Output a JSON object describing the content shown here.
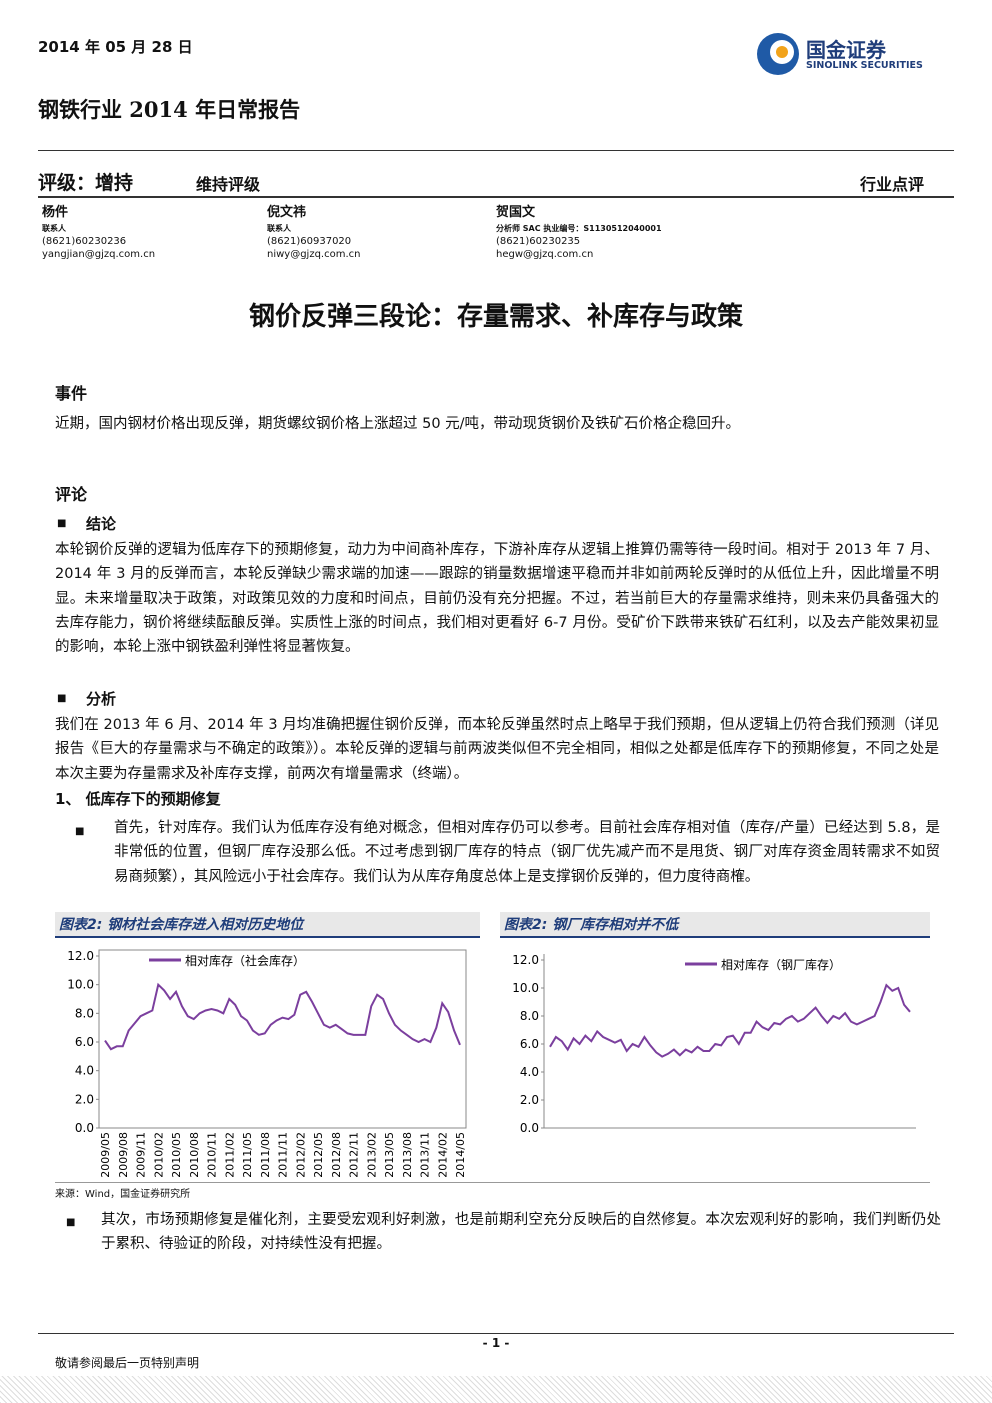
{
  "header": {
    "date": "2014 年 05 月 28 日",
    "logo_cn": "国金证券",
    "logo_en": "SINOLINK SECURITIES",
    "report_title": "钢铁行业 2014 年日常报告"
  },
  "rating": {
    "label": "评级：增持",
    "maintain": "维持评级",
    "category": "行业点评"
  },
  "analysts": [
    {
      "name": "杨件",
      "role": "联系人",
      "phone": "(8621)60230236",
      "email": "yangjian@gjzq.com.cn"
    },
    {
      "name": "倪文祎",
      "role": "联系人",
      "phone": "(8621)60937020",
      "email": "niwy@gjzq.com.cn"
    },
    {
      "name": "贺国文",
      "role": "分析师 SAC 执业编号：S1130512040001",
      "phone": "(8621)60230235",
      "email": "hegw@gjzq.com.cn"
    }
  ],
  "title": "钢价反弹三段论：存量需求、补库存与政策",
  "event": {
    "heading": "事件",
    "text": "近期，国内钢材价格出现反弹，期货螺纹钢价格上涨超过 50 元/吨，带动现货钢价及铁矿石价格企稳回升。"
  },
  "comment": {
    "heading": "评论",
    "conclusion": {
      "heading": "结论",
      "text": "本轮钢价反弹的逻辑为低库存下的预期修复，动力为中间商补库存，下游补库存从逻辑上推算仍需等待一段时间。相对于 2013 年 7 月、2014 年 3 月的反弹而言，本轮反弹缺少需求端的加速——跟踪的销量数据增速平稳而并非如前两轮反弹时的从低位上升，因此增量不明显。未来增量取决于政策，对政策见效的力度和时间点，目前仍没有充分把握。不过，若当前巨大的存量需求维持，则未来仍具备强大的去库存能力，钢价将继续酝酿反弹。实质性上涨的时间点，我们相对更看好 6-7 月份。受矿价下跌带来铁矿石红利，以及去产能效果初显的影响，本轮上涨中钢铁盈利弹性将显著恢复。"
    },
    "analysis": {
      "heading": "分析",
      "text": "我们在 2013 年 6 月、2014 年 3 月均准确把握住钢价反弹，而本轮反弹虽然时点上略早于我们预期，但从逻辑上仍符合我们预测（详见报告《巨大的存量需求与不确定的政策》）。本轮反弹的逻辑与前两波类似但不完全相同，相似之处都是低库存下的预期修复，不同之处是本次主要为存量需求及补库存支撑，前两次有增量需求（终端）。"
    },
    "sub1": {
      "heading": "1、 低库存下的预期修复",
      "bullets": [
        "首先，针对库存。我们认为低库存没有绝对概念，但相对库存仍可以参考。目前社会库存相对值（库存/产量）已经达到 5.8，是非常低的位置，但钢厂库存没那么低。不过考虑到钢厂库存的特点（钢厂优先减产而不是甩货、钢厂对库存资金周转需求不如贸易商频繁），其风险远小于社会库存。我们认为从库存角度总体上是支撑钢价反弹的，但力度待商榷。",
        "其次，市场预期修复是催化剂，主要受宏观利好刺激，也是前期利空充分反映后的自然修复。本次宏观利好的影响，我们判断仍处于累积、待验证的阶段，对持续性没有把握。"
      ]
    }
  },
  "source": "来源：Wind，国金证券研究所",
  "footer": {
    "page": "- 1 -",
    "disclaimer": "敬请参阅最后一页特别声明"
  },
  "chart_data": [
    {
      "type": "line",
      "title": "图表2: 钢材社会库存进入相对历史地位",
      "legend": "top-left",
      "categories": [
        "2009/05",
        null,
        null,
        "2009/08",
        null,
        null,
        "2009/11",
        null,
        null,
        "2010/02",
        null,
        null,
        "2010/05",
        null,
        null,
        "2010/08",
        null,
        null,
        "2010/11",
        null,
        null,
        "2011/02",
        null,
        null,
        "2011/05",
        null,
        null,
        "2011/08",
        null,
        null,
        "2011/11",
        null,
        null,
        "2012/02",
        null,
        null,
        "2012/05",
        null,
        null,
        "2012/08",
        null,
        null,
        "2012/11",
        null,
        null,
        "2013/02",
        null,
        null,
        "2013/05",
        null,
        null,
        "2013/08",
        null,
        null,
        "2013/11",
        null,
        null,
        "2014/02",
        null,
        null,
        "2014/05"
      ],
      "series": [
        {
          "name": "相对库存（社会库存）",
          "color": "#7b3f9e",
          "values": [
            6.1,
            5.5,
            5.7,
            5.7,
            6.8,
            7.3,
            7.8,
            8.0,
            8.2,
            10.0,
            9.6,
            9.0,
            9.5,
            8.5,
            7.8,
            7.6,
            8.0,
            8.2,
            8.3,
            8.2,
            8.0,
            9.0,
            8.6,
            7.8,
            7.5,
            6.8,
            6.5,
            6.6,
            7.2,
            7.5,
            7.7,
            7.6,
            7.9,
            9.3,
            9.5,
            8.8,
            8.0,
            7.2,
            7.0,
            7.2,
            6.9,
            6.6,
            6.5,
            6.5,
            6.5,
            8.5,
            9.3,
            9.0,
            8.0,
            7.2,
            6.8,
            6.5,
            6.2,
            6.0,
            6.2,
            6.0,
            7.0,
            8.7,
            8.1,
            6.8,
            5.8
          ]
        }
      ],
      "ylim": [
        0,
        12
      ],
      "yticks": [
        {
          "value": 0,
          "label": "0.0"
        },
        {
          "value": 2,
          "label": "2.0"
        },
        {
          "value": 4,
          "label": "4.0"
        },
        {
          "value": 6,
          "label": "6.0"
        },
        {
          "value": 8,
          "label": "8.0"
        },
        {
          "value": 10,
          "label": "10.0"
        },
        {
          "value": 12,
          "label": "12.0"
        }
      ]
    },
    {
      "type": "line",
      "title": "图表2: 钢厂库存相对并不低",
      "legend": "top",
      "series": [
        {
          "name": "相对库存（钢厂库存）",
          "color": "#7b3f9e",
          "values": [
            5.8,
            6.5,
            6.2,
            5.6,
            6.4,
            6.0,
            6.6,
            6.2,
            6.9,
            6.5,
            6.3,
            6.1,
            6.3,
            5.5,
            6.0,
            5.8,
            6.5,
            5.9,
            5.4,
            5.1,
            5.3,
            5.6,
            5.2,
            5.6,
            5.4,
            5.8,
            5.5,
            5.5,
            6.0,
            5.9,
            6.5,
            6.6,
            6.0,
            6.8,
            6.8,
            7.6,
            7.2,
            7.0,
            7.5,
            7.4,
            7.8,
            8.0,
            7.6,
            7.8,
            8.2,
            8.6,
            8.0,
            7.5,
            8.0,
            7.8,
            8.2,
            7.6,
            7.4,
            7.6,
            7.8,
            8.0,
            9.0,
            10.2,
            9.8,
            10.0,
            8.8,
            8.3
          ]
        }
      ],
      "ylim": [
        0,
        12
      ],
      "yticks": [
        {
          "value": 0,
          "label": "0.0"
        },
        {
          "value": 2,
          "label": "2.0"
        },
        {
          "value": 4,
          "label": "4.0"
        },
        {
          "value": 6,
          "label": "6.0"
        },
        {
          "value": 8,
          "label": "8.0"
        },
        {
          "value": 10,
          "label": "10.0"
        },
        {
          "value": 12,
          "label": "12.0"
        }
      ]
    }
  ]
}
